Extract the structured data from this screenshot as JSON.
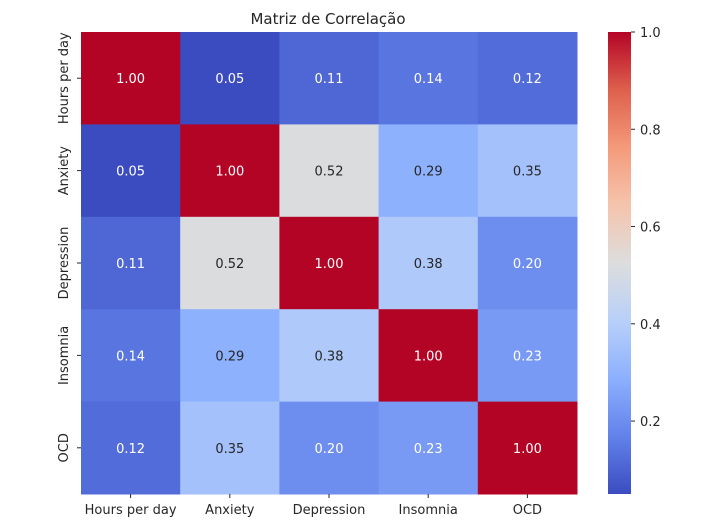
{
  "chart_data": {
    "type": "heatmap",
    "title": "Matriz de Correlação",
    "x_labels": [
      "Hours per day",
      "Anxiety",
      "Depression",
      "Insomnia",
      "OCD"
    ],
    "y_labels": [
      "Hours per day",
      "Anxiety",
      "Depression",
      "Insomnia",
      "OCD"
    ],
    "values": [
      [
        1.0,
        0.05,
        0.11,
        0.14,
        0.12
      ],
      [
        0.05,
        1.0,
        0.52,
        0.29,
        0.35
      ],
      [
        0.11,
        0.52,
        1.0,
        0.38,
        0.2
      ],
      [
        0.14,
        0.29,
        0.38,
        1.0,
        0.23
      ],
      [
        0.12,
        0.35,
        0.2,
        0.23,
        1.0
      ]
    ],
    "value_format": "0.00",
    "colormap": "coolwarm",
    "color_range": [
      0.05,
      1.0
    ],
    "colorbar_ticks": [
      0.2,
      0.4,
      0.6,
      0.8,
      1.0
    ],
    "colorbar_tick_labels": [
      "0.2",
      "0.4",
      "0.6",
      "0.8",
      "1.0"
    ]
  }
}
